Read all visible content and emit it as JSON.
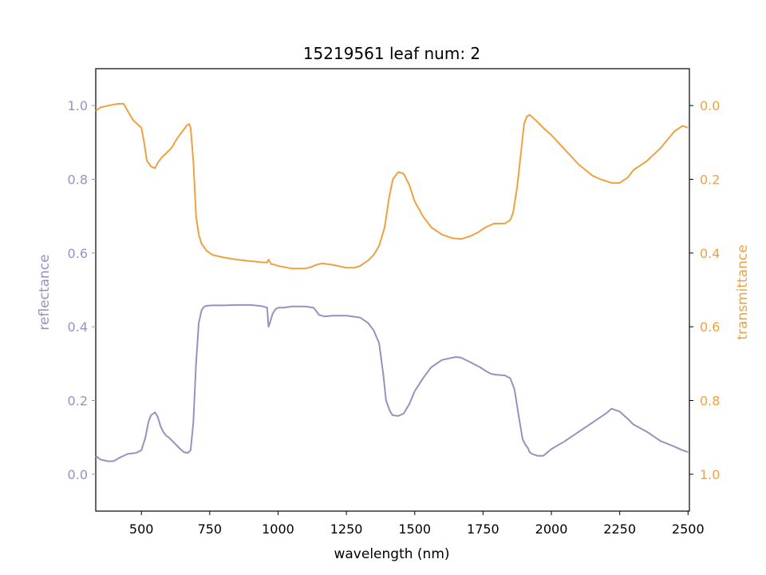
{
  "chart_data": {
    "type": "line",
    "title": "15219561 leaf num: 2",
    "xlabel": "wavelength (nm)",
    "ylabel_left": "reflectance",
    "ylabel_right": "transmittance",
    "xlim": [
      333,
      2505
    ],
    "ylim_left": [
      -0.1,
      1.1
    ],
    "ylim_right": [
      1.1,
      -0.1
    ],
    "right_axis_inverted": true,
    "x_ticks": [
      "500",
      "750",
      "1000",
      "1250",
      "1500",
      "1750",
      "2000",
      "2250",
      "2500"
    ],
    "y_left_ticks": [
      "0.0",
      "0.2",
      "0.4",
      "0.6",
      "0.8",
      "1.0"
    ],
    "y_right_ticks": [
      "0.0",
      "0.2",
      "0.4",
      "0.6",
      "0.8",
      "1.0"
    ],
    "grid": false,
    "colors": {
      "reflectance": "#9990c2",
      "transmittance": "#eea140",
      "frame": "#000000"
    },
    "series": [
      {
        "axis": "left",
        "color": "#9990c2",
        "x": [
          333,
          350,
          380,
          400,
          420,
          450,
          480,
          500,
          515,
          525,
          535,
          550,
          560,
          570,
          580,
          590,
          600,
          620,
          640,
          655,
          670,
          680,
          690,
          700,
          710,
          720,
          730,
          740,
          760,
          800,
          850,
          900,
          940,
          960,
          965,
          970,
          980,
          990,
          1000,
          1020,
          1050,
          1100,
          1130,
          1150,
          1170,
          1200,
          1250,
          1300,
          1330,
          1350,
          1370,
          1385,
          1395,
          1410,
          1420,
          1440,
          1460,
          1480,
          1500,
          1530,
          1560,
          1600,
          1650,
          1670,
          1700,
          1740,
          1760,
          1780,
          1800,
          1830,
          1850,
          1865,
          1880,
          1895,
          1905,
          1915,
          1920,
          1930,
          1950,
          1970,
          2000,
          2050,
          2100,
          2150,
          2200,
          2220,
          2250,
          2280,
          2300,
          2350,
          2400,
          2450,
          2480,
          2500
        ],
        "y": [
          0.05,
          0.04,
          0.035,
          0.036,
          0.045,
          0.055,
          0.058,
          0.065,
          0.1,
          0.14,
          0.16,
          0.168,
          0.155,
          0.13,
          0.115,
          0.105,
          0.1,
          0.085,
          0.07,
          0.06,
          0.058,
          0.065,
          0.14,
          0.3,
          0.41,
          0.445,
          0.455,
          0.457,
          0.458,
          0.458,
          0.459,
          0.459,
          0.456,
          0.452,
          0.4,
          0.41,
          0.435,
          0.447,
          0.452,
          0.452,
          0.455,
          0.455,
          0.452,
          0.432,
          0.428,
          0.43,
          0.43,
          0.425,
          0.41,
          0.39,
          0.355,
          0.27,
          0.2,
          0.17,
          0.16,
          0.158,
          0.165,
          0.19,
          0.225,
          0.26,
          0.29,
          0.31,
          0.318,
          0.316,
          0.305,
          0.29,
          0.28,
          0.272,
          0.27,
          0.268,
          0.26,
          0.23,
          0.16,
          0.095,
          0.08,
          0.07,
          0.06,
          0.055,
          0.05,
          0.05,
          0.068,
          0.09,
          0.115,
          0.14,
          0.165,
          0.178,
          0.17,
          0.15,
          0.135,
          0.115,
          0.09,
          0.075,
          0.065,
          0.06
        ]
      },
      {
        "axis": "right",
        "color": "#eea140",
        "x": [
          333,
          350,
          380,
          400,
          420,
          435,
          450,
          470,
          485,
          500,
          510,
          520,
          535,
          550,
          560,
          575,
          590,
          610,
          630,
          650,
          665,
          675,
          680,
          690,
          700,
          710,
          720,
          730,
          740,
          760,
          800,
          850,
          900,
          940,
          960,
          965,
          975,
          990,
          1000,
          1050,
          1100,
          1120,
          1140,
          1160,
          1200,
          1250,
          1280,
          1300,
          1330,
          1350,
          1370,
          1390,
          1405,
          1420,
          1440,
          1460,
          1480,
          1500,
          1530,
          1560,
          1600,
          1640,
          1670,
          1700,
          1730,
          1760,
          1790,
          1810,
          1830,
          1850,
          1860,
          1875,
          1890,
          1900,
          1910,
          1920,
          1935,
          1950,
          1970,
          2000,
          2050,
          2100,
          2150,
          2180,
          2220,
          2250,
          2280,
          2300,
          2350,
          2400,
          2450,
          2480,
          2500
        ],
        "y": [
          0.015,
          0.005,
          0.0,
          -0.003,
          -0.005,
          -0.005,
          0.015,
          0.04,
          0.05,
          0.06,
          0.1,
          0.15,
          0.165,
          0.17,
          0.155,
          0.14,
          0.13,
          0.115,
          0.09,
          0.07,
          0.055,
          0.05,
          0.06,
          0.15,
          0.3,
          0.35,
          0.375,
          0.385,
          0.395,
          0.405,
          0.412,
          0.418,
          0.422,
          0.425,
          0.426,
          0.418,
          0.43,
          0.432,
          0.435,
          0.442,
          0.442,
          0.438,
          0.432,
          0.428,
          0.432,
          0.44,
          0.44,
          0.435,
          0.42,
          0.405,
          0.38,
          0.33,
          0.255,
          0.2,
          0.18,
          0.185,
          0.215,
          0.26,
          0.3,
          0.33,
          0.35,
          0.36,
          0.362,
          0.355,
          0.345,
          0.33,
          0.32,
          0.32,
          0.32,
          0.31,
          0.29,
          0.22,
          0.12,
          0.05,
          0.03,
          0.025,
          0.035,
          0.045,
          0.06,
          0.08,
          0.12,
          0.16,
          0.19,
          0.2,
          0.21,
          0.21,
          0.195,
          0.175,
          0.15,
          0.115,
          0.07,
          0.055,
          0.06
        ]
      }
    ]
  }
}
